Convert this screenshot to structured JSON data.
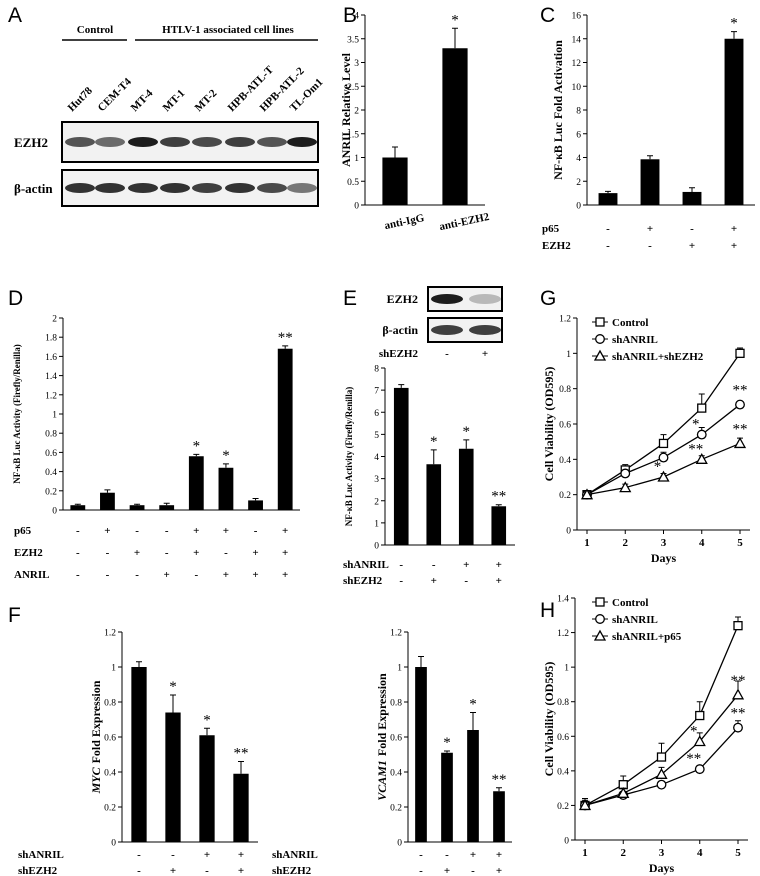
{
  "panel_labels": [
    "A",
    "B",
    "C",
    "D",
    "E",
    "F",
    "G",
    "H"
  ],
  "blot_a": {
    "groups": [
      "Control",
      "HTLV-1 associated cell lines"
    ],
    "lanes": [
      "Hut78",
      "CEM-T4",
      "MT-4",
      "MT-1",
      "MT-2",
      "HPB-ATL-T",
      "HPB-ATL-2",
      "TL-Om1"
    ],
    "rows": [
      "EZH2",
      "β-actin"
    ]
  },
  "blot_e": {
    "rows": [
      "EZH2",
      "β-actin"
    ],
    "condition": "shEZH2",
    "signs": [
      "-",
      "+"
    ]
  },
  "chart_data": [
    {
      "type": "bar",
      "ylabel": "ANRIL Relative Level",
      "categories": [
        "anti-IgG",
        "anti-EZH2"
      ],
      "values": [
        1,
        3.3
      ],
      "errors": [
        0.22,
        0.42
      ],
      "sig": [
        null,
        "*"
      ],
      "ylim": [
        0,
        4
      ],
      "yticks": [
        0,
        0.5,
        1,
        1.5,
        2,
        2.5,
        3,
        3.5,
        4
      ],
      "color": "#000000"
    },
    {
      "type": "bar",
      "ylabel": "NF-κB Luc Fold Activation",
      "values": [
        1,
        3.85,
        1.1,
        14
      ],
      "errors": [
        0.15,
        0.3,
        0.35,
        0.6
      ],
      "sig": [
        null,
        null,
        null,
        "*"
      ],
      "conditions": [
        {
          "name": "p65",
          "signs": [
            "-",
            "+",
            "-",
            "+"
          ]
        },
        {
          "name": "EZH2",
          "signs": [
            "-",
            "-",
            "+",
            "+"
          ]
        }
      ],
      "ylim": [
        0,
        16
      ],
      "yticks": [
        0,
        2,
        4,
        6,
        8,
        10,
        12,
        14,
        16
      ],
      "color": "#000000"
    },
    {
      "type": "bar",
      "ylabel": "NF-κB Luc Activity (Firefly/Renilla)",
      "values": [
        0.05,
        0.18,
        0.05,
        0.05,
        0.56,
        0.44,
        0.1,
        1.68
      ],
      "errors": [
        0.01,
        0.03,
        0.01,
        0.02,
        0.02,
        0.04,
        0.02,
        0.03
      ],
      "sig": [
        null,
        null,
        null,
        null,
        "*",
        "*",
        null,
        "**"
      ],
      "conditions": [
        {
          "name": "p65",
          "signs": [
            "-",
            "+",
            "-",
            "-",
            "+",
            "+",
            "-",
            "+"
          ]
        },
        {
          "name": "EZH2",
          "signs": [
            "-",
            "-",
            "+",
            "-",
            "+",
            "-",
            "+",
            "+"
          ]
        },
        {
          "name": "ANRIL",
          "signs": [
            "-",
            "-",
            "-",
            "+",
            "-",
            "+",
            "+",
            "+"
          ]
        }
      ],
      "ylim": [
        0,
        2
      ],
      "yticks": [
        0,
        0.2,
        0.4,
        0.6,
        0.8,
        1,
        1.2,
        1.4,
        1.6,
        1.8,
        2
      ],
      "color": "#000000"
    },
    {
      "type": "bar",
      "ylabel": "NF-κB Luc Activity (Firefly/Renilla)",
      "values": [
        7.1,
        3.65,
        4.35,
        1.75
      ],
      "errors": [
        0.15,
        0.65,
        0.4,
        0.07
      ],
      "sig": [
        null,
        "*",
        "*",
        "**"
      ],
      "conditions": [
        {
          "name": "shANRIL",
          "signs": [
            "-",
            "-",
            "+",
            "+"
          ]
        },
        {
          "name": "shEZH2",
          "signs": [
            "-",
            "+",
            "-",
            "+"
          ]
        }
      ],
      "ylim": [
        0,
        8
      ],
      "yticks": [
        0,
        1,
        2,
        3,
        4,
        5,
        6,
        7,
        8
      ],
      "color": "#000000"
    },
    {
      "type": "bar",
      "ylabel_gene": "MYC",
      "ylabel": "Fold Expression",
      "values": [
        1,
        0.74,
        0.61,
        0.39
      ],
      "errors": [
        0.03,
        0.1,
        0.04,
        0.07
      ],
      "sig": [
        null,
        "*",
        "*",
        "**"
      ],
      "conditions": [
        {
          "name": "shANRIL",
          "signs": [
            "-",
            "-",
            "+",
            "+"
          ]
        },
        {
          "name": "shEZH2",
          "signs": [
            "-",
            "+",
            "-",
            "+"
          ]
        }
      ],
      "ylim": [
        0,
        1.2
      ],
      "yticks": [
        0,
        0.2,
        0.4,
        0.6,
        0.8,
        1,
        1.2
      ],
      "color": "#000000"
    },
    {
      "type": "bar",
      "ylabel_gene": "VCAM1",
      "ylabel": "Fold Expression",
      "values": [
        1,
        0.51,
        0.64,
        0.29
      ],
      "errors": [
        0.06,
        0.01,
        0.1,
        0.02
      ],
      "sig": [
        null,
        "*",
        "*",
        "**"
      ],
      "conditions": [
        {
          "name": "shANRIL",
          "signs": [
            "-",
            "-",
            "+",
            "+"
          ]
        },
        {
          "name": "shEZH2",
          "signs": [
            "-",
            "+",
            "-",
            "+"
          ]
        }
      ],
      "ylim": [
        0,
        1.2
      ],
      "yticks": [
        0,
        0.2,
        0.4,
        0.6,
        0.8,
        1,
        1.2
      ],
      "color": "#000000"
    },
    {
      "type": "line",
      "ylabel": "Cell Viability (OD595)",
      "xlabel": "Days",
      "x": [
        1,
        2,
        3,
        4,
        5
      ],
      "xlim": [
        1,
        5
      ],
      "xticks": [
        1,
        2,
        3,
        4,
        5
      ],
      "ylim": [
        0,
        1.2
      ],
      "yticks": [
        0,
        0.2,
        0.4,
        0.6,
        0.8,
        1,
        1.2
      ],
      "series": [
        {
          "name": "Control",
          "color": "#000000",
          "marker": "square",
          "values": [
            0.2,
            0.34,
            0.49,
            0.69,
            1.0
          ],
          "errors": [
            0.02,
            0.03,
            0.05,
            0.08,
            0.03
          ],
          "sig": [
            null,
            null,
            null,
            null,
            null
          ]
        },
        {
          "name": "shANRIL",
          "color": "#000000",
          "marker": "circle",
          "values": [
            0.2,
            0.32,
            0.41,
            0.54,
            0.71
          ],
          "errors": [
            0.02,
            0.02,
            0.03,
            0.04,
            0.02
          ],
          "sig": [
            null,
            null,
            null,
            "*",
            "**"
          ]
        },
        {
          "name": "shANRIL+shEZH2",
          "color": "#000000",
          "marker": "triangle",
          "values": [
            0.2,
            0.24,
            0.3,
            0.4,
            0.49
          ],
          "errors": [
            0.01,
            0.02,
            0.02,
            0.02,
            0.03
          ],
          "sig": [
            null,
            null,
            "*",
            "**",
            "**"
          ]
        }
      ]
    },
    {
      "type": "line",
      "ylabel": "Cell Viability (OD595)",
      "xlabel": "Days",
      "x": [
        1,
        2,
        3,
        4,
        5
      ],
      "xlim": [
        1,
        5
      ],
      "xticks": [
        1,
        2,
        3,
        4,
        5
      ],
      "ylim": [
        0,
        1.4
      ],
      "yticks": [
        0,
        0.2,
        0.4,
        0.6,
        0.8,
        1,
        1.2,
        1.4
      ],
      "series": [
        {
          "name": "Control",
          "color": "#000000",
          "marker": "square",
          "values": [
            0.2,
            0.32,
            0.48,
            0.72,
            1.24
          ],
          "errors": [
            0.04,
            0.05,
            0.08,
            0.08,
            0.05
          ],
          "sig": [
            null,
            null,
            null,
            null,
            null
          ]
        },
        {
          "name": "shANRIL",
          "color": "#000000",
          "marker": "circle",
          "values": [
            0.2,
            0.26,
            0.32,
            0.41,
            0.65
          ],
          "errors": [
            0.03,
            0.02,
            0.02,
            0.02,
            0.04
          ],
          "sig": [
            null,
            null,
            null,
            "**",
            "**"
          ]
        },
        {
          "name": "shANRIL+p65",
          "color": "#000000",
          "marker": "triangle",
          "values": [
            0.2,
            0.27,
            0.38,
            0.57,
            0.84
          ],
          "errors": [
            0.02,
            0.03,
            0.04,
            0.05,
            0.08
          ],
          "sig": [
            null,
            null,
            null,
            "*",
            "**"
          ]
        }
      ]
    }
  ]
}
